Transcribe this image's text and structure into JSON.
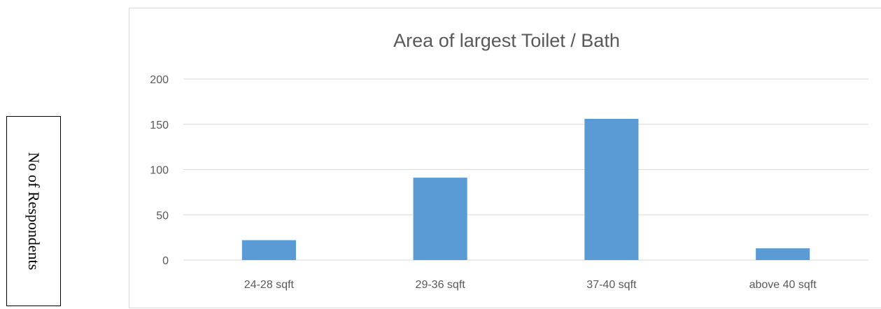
{
  "chart_data": {
    "type": "bar",
    "title": "Area of largest Toilet / Bath",
    "xlabel": "",
    "ylabel": "No of Respondents",
    "categories": [
      "24-28 sqft",
      "29-36 sqft",
      "37-40 sqft",
      "above 40 sqft"
    ],
    "values": [
      22,
      91,
      156,
      13
    ],
    "ylim": [
      0,
      200
    ],
    "yticks": [
      "0",
      "50",
      "100",
      "150",
      "200"
    ],
    "grid": true,
    "legend": "none",
    "colors": {
      "bar": "#5b9bd5",
      "gridline": "#d9d9d9",
      "text": "#595959",
      "frame": "#d9d9d9"
    }
  }
}
